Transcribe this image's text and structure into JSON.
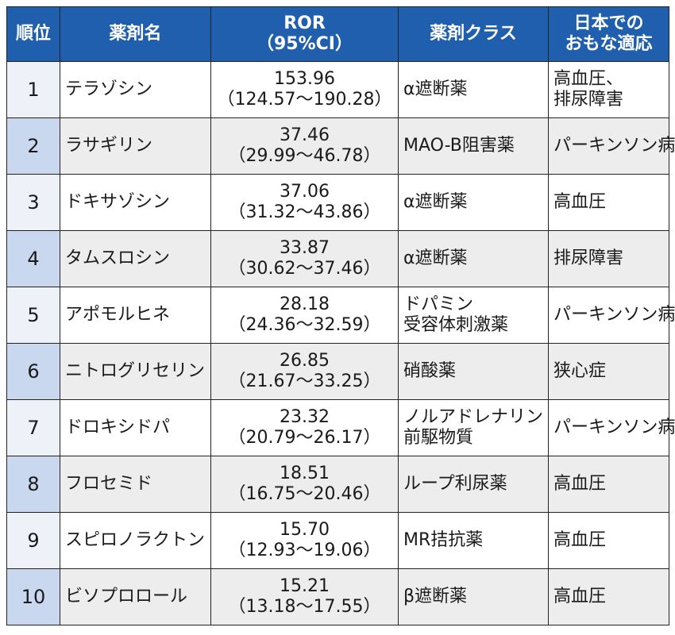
{
  "headers": {
    "rank": "順位",
    "name": "薬剤名",
    "ror_line1": "ROR",
    "ror_line2": "（95%CI）",
    "class": "薬剤クラス",
    "indication_line1": "日本での",
    "indication_line2": "おもな適応"
  },
  "rows": [
    {
      "rank": "1",
      "name": "テラゾシン",
      "ror": "153.96",
      "ci": "（124.57～190.28）",
      "class": [
        "α遮断薬"
      ],
      "indication": [
        "高血圧、",
        "排尿障害"
      ]
    },
    {
      "rank": "2",
      "name": "ラサギリン",
      "ror": "37.46",
      "ci": "（29.99～46.78）",
      "class": [
        "MAO-B阻害薬"
      ],
      "indication": [
        "パーキンソン病"
      ]
    },
    {
      "rank": "3",
      "name": "ドキサゾシン",
      "ror": "37.06",
      "ci": "（31.32～43.86）",
      "class": [
        "α遮断薬"
      ],
      "indication": [
        "高血圧"
      ]
    },
    {
      "rank": "4",
      "name": "タムスロシン",
      "ror": "33.87",
      "ci": "（30.62～37.46）",
      "class": [
        "α遮断薬"
      ],
      "indication": [
        "排尿障害"
      ]
    },
    {
      "rank": "5",
      "name": "アポモルヒネ",
      "ror": "28.18",
      "ci": "（24.36～32.59）",
      "class": [
        "ドパミン",
        "受容体刺激薬"
      ],
      "indication": [
        "パーキンソン病"
      ]
    },
    {
      "rank": "6",
      "name": "ニトログリセリン",
      "ror": "26.85",
      "ci": "（21.67～33.25）",
      "class": [
        "硝酸薬"
      ],
      "indication": [
        "狭心症"
      ]
    },
    {
      "rank": "7",
      "name": "ドロキシドパ",
      "ror": "23.32",
      "ci": "（20.79～26.17）",
      "class": [
        "ノルアドレナリン",
        "前駆物質"
      ],
      "indication": [
        "パーキンソン病"
      ]
    },
    {
      "rank": "8",
      "name": "フロセミド",
      "ror": "18.51",
      "ci": "（16.75～20.46）",
      "class": [
        "ループ利尿薬"
      ],
      "indication": [
        "高血圧"
      ]
    },
    {
      "rank": "9",
      "name": "スピロノラクトン",
      "ror": "15.70",
      "ci": "（12.93～19.06）",
      "class": [
        "MR拮抗薬"
      ],
      "indication": [
        "高血圧"
      ]
    },
    {
      "rank": "10",
      "name": "ビソプロロール",
      "ror": "15.21",
      "ci": "（13.18～17.55）",
      "class": [
        "β遮断薬"
      ],
      "indication": [
        "高血圧"
      ]
    }
  ]
}
